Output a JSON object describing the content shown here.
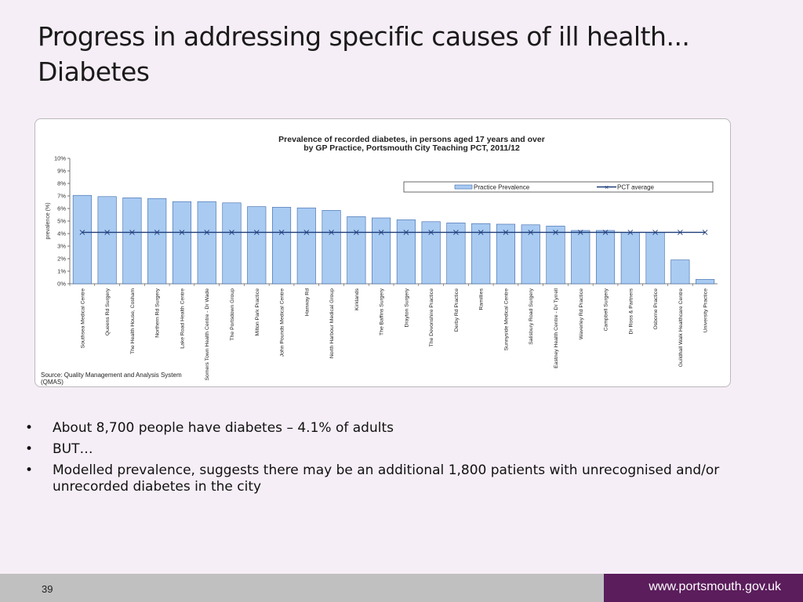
{
  "slide": {
    "title": "Progress in addressing specific causes of ill health... Diabetes",
    "bullets": [
      "About 8,700 people have diabetes – 4.1% of adults",
      "BUT…",
      "Modelled prevalence, suggests there may be an additional 1,800 patients with unrecognised and/or unrecorded diabetes in the city"
    ],
    "page_number": "39",
    "website": "www.portsmouth.gov.uk"
  },
  "colors": {
    "bar_fill": "#a9cbf2",
    "bar_stroke": "#3a66a8",
    "average_line": "#1f3d7a",
    "footer_purple": "#5b1d5c",
    "footer_grey": "#c0c0c0"
  },
  "chart_data": {
    "type": "bar",
    "title_line1": "Prevalence of recorded diabetes, in persons aged 17 years and over",
    "title_line2": "by GP Practice, Portsmouth City Teaching PCT,  2011/12",
    "ylabel": "prevalence (%)",
    "ylim": [
      0,
      10
    ],
    "yticks": [
      "0%",
      "1%",
      "2%",
      "3%",
      "4%",
      "5%",
      "6%",
      "7%",
      "8%",
      "9%",
      "10%"
    ],
    "grid": false,
    "legend_position": "top-right",
    "categories": [
      "Southsea Medical Centre",
      "Queens Rd Surgery",
      "The Health House, Cosham",
      "Northern Rd Surgery",
      "Lake Road Health Centre",
      "Somers Town Health Centre - Dr Wade",
      "The Portsdown Group",
      "Milton Park Practice",
      "John Pounds Medical Centre",
      "Hanway Rd",
      "North Harbour Medical Group",
      "Kirklands",
      "The Baffins Surgery",
      "Drayton Surgery",
      "The Devonshire Practice",
      "Derby Rd Practice",
      "Ramillies",
      "Sunnyside Medical Centre",
      "Salisbury Road Surgery",
      "Eastney Health Centre - Dr Tyrrell",
      "Waverley Rd Practice",
      "Campbell Surgery",
      "Dr Ross & Partners",
      "Osborne Practice",
      "Guildhall Walk Healthcare Centre",
      "University Practice"
    ],
    "series": [
      {
        "name": "Practice Prevalence",
        "values": [
          7.05,
          6.95,
          6.85,
          6.8,
          6.55,
          6.55,
          6.45,
          6.15,
          6.1,
          6.05,
          5.85,
          5.35,
          5.25,
          5.1,
          4.95,
          4.85,
          4.8,
          4.75,
          4.7,
          4.6,
          4.25,
          4.25,
          4.1,
          4.1,
          1.9,
          0.35
        ]
      },
      {
        "name": "PCT average",
        "values": [
          4.1,
          4.1,
          4.1,
          4.1,
          4.1,
          4.1,
          4.1,
          4.1,
          4.1,
          4.1,
          4.1,
          4.1,
          4.1,
          4.1,
          4.1,
          4.1,
          4.1,
          4.1,
          4.1,
          4.1,
          4.1,
          4.1,
          4.1,
          4.1,
          4.1,
          4.1
        ]
      }
    ],
    "source_line1": "Source: Quality Management and Analysis System",
    "source_line2": "(QMAS)"
  }
}
